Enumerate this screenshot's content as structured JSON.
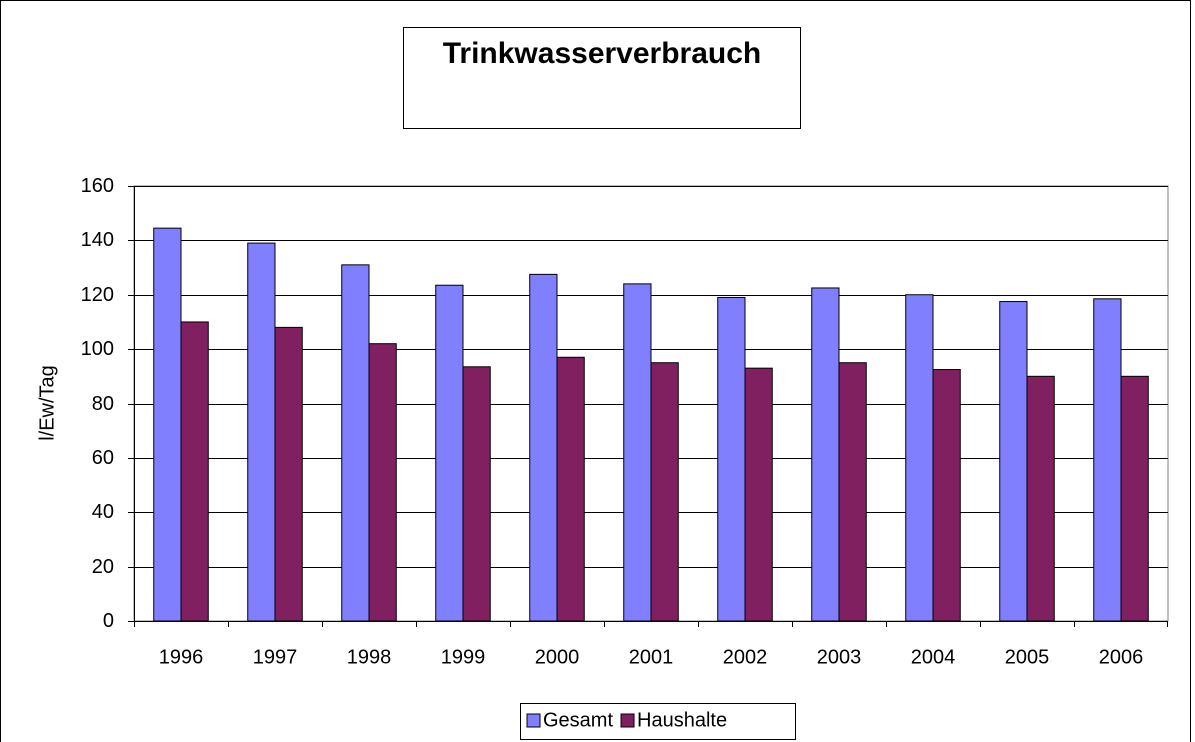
{
  "chart_data": {
    "type": "bar",
    "title": "Trinkwasserverbrauch",
    "y_label": "l/Ew/Tag",
    "categories": [
      "1996",
      "1997",
      "1998",
      "1999",
      "2000",
      "2001",
      "2002",
      "2003",
      "2004",
      "2005",
      "2006"
    ],
    "series": [
      {
        "name": "Gesamt",
        "color": "#8080ff",
        "values": [
          144.5,
          139,
          131,
          123.5,
          127.5,
          124,
          119,
          122.5,
          120,
          117.5,
          118.5
        ]
      },
      {
        "name": "Haushalte",
        "color": "#802060",
        "values": [
          110,
          108,
          102,
          93.5,
          97,
          95,
          93,
          95,
          92.5,
          90,
          90
        ]
      }
    ],
    "ylim": [
      0,
      160
    ],
    "yticks": [
      0,
      20,
      40,
      60,
      80,
      100,
      120,
      140,
      160
    ],
    "grid": true,
    "legend": "bottom"
  }
}
